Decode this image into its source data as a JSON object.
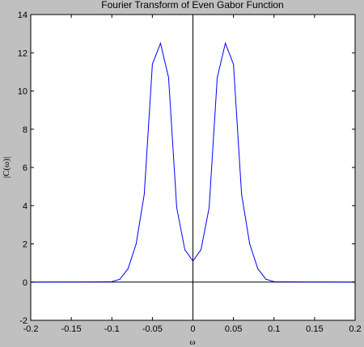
{
  "chart_data": {
    "type": "line",
    "title": "Fourier Transform of Even Gabor Function",
    "xlabel": "ω",
    "ylabel": "|C(ω)|",
    "xlim": [
      -0.2,
      0.2
    ],
    "ylim": [
      -2,
      14
    ],
    "xticks": [
      -0.2,
      -0.15,
      -0.1,
      -0.05,
      0,
      0.05,
      0.1,
      0.15,
      0.2
    ],
    "xtick_labels": [
      "-0.2",
      "-0.15",
      "-0.1",
      "-0.05",
      "0",
      "0.05",
      "0.1",
      "0.15",
      "0.2"
    ],
    "yticks": [
      -2,
      0,
      2,
      4,
      6,
      8,
      10,
      12,
      14
    ],
    "ytick_labels": [
      "-2",
      "0",
      "2",
      "4",
      "6",
      "8",
      "10",
      "12",
      "14"
    ],
    "grid": false,
    "colors": {
      "figure_background": "#c0c0c0",
      "plot_background": "#ffffff",
      "series_line": "#0000ff",
      "reference_lines": "#000000"
    },
    "series": [
      {
        "x": [
          -0.2,
          -0.1,
          -0.09,
          -0.08,
          -0.07,
          -0.06,
          -0.05,
          -0.04,
          -0.03,
          -0.02,
          -0.01,
          0,
          0.01,
          0.02,
          0.03,
          0.04,
          0.05,
          0.06,
          0.07,
          0.08,
          0.09,
          0.1,
          0.2
        ],
        "y": [
          0,
          0.02,
          0.15,
          0.7,
          2.0,
          4.6,
          11.4,
          12.5,
          10.7,
          3.9,
          1.7,
          1.1,
          1.7,
          3.9,
          10.7,
          12.5,
          11.4,
          4.6,
          2.0,
          0.7,
          0.15,
          0.02,
          0
        ]
      }
    ],
    "reference_lines": [
      {
        "orientation": "horizontal",
        "value": 0
      },
      {
        "orientation": "vertical",
        "value": 0
      }
    ]
  }
}
